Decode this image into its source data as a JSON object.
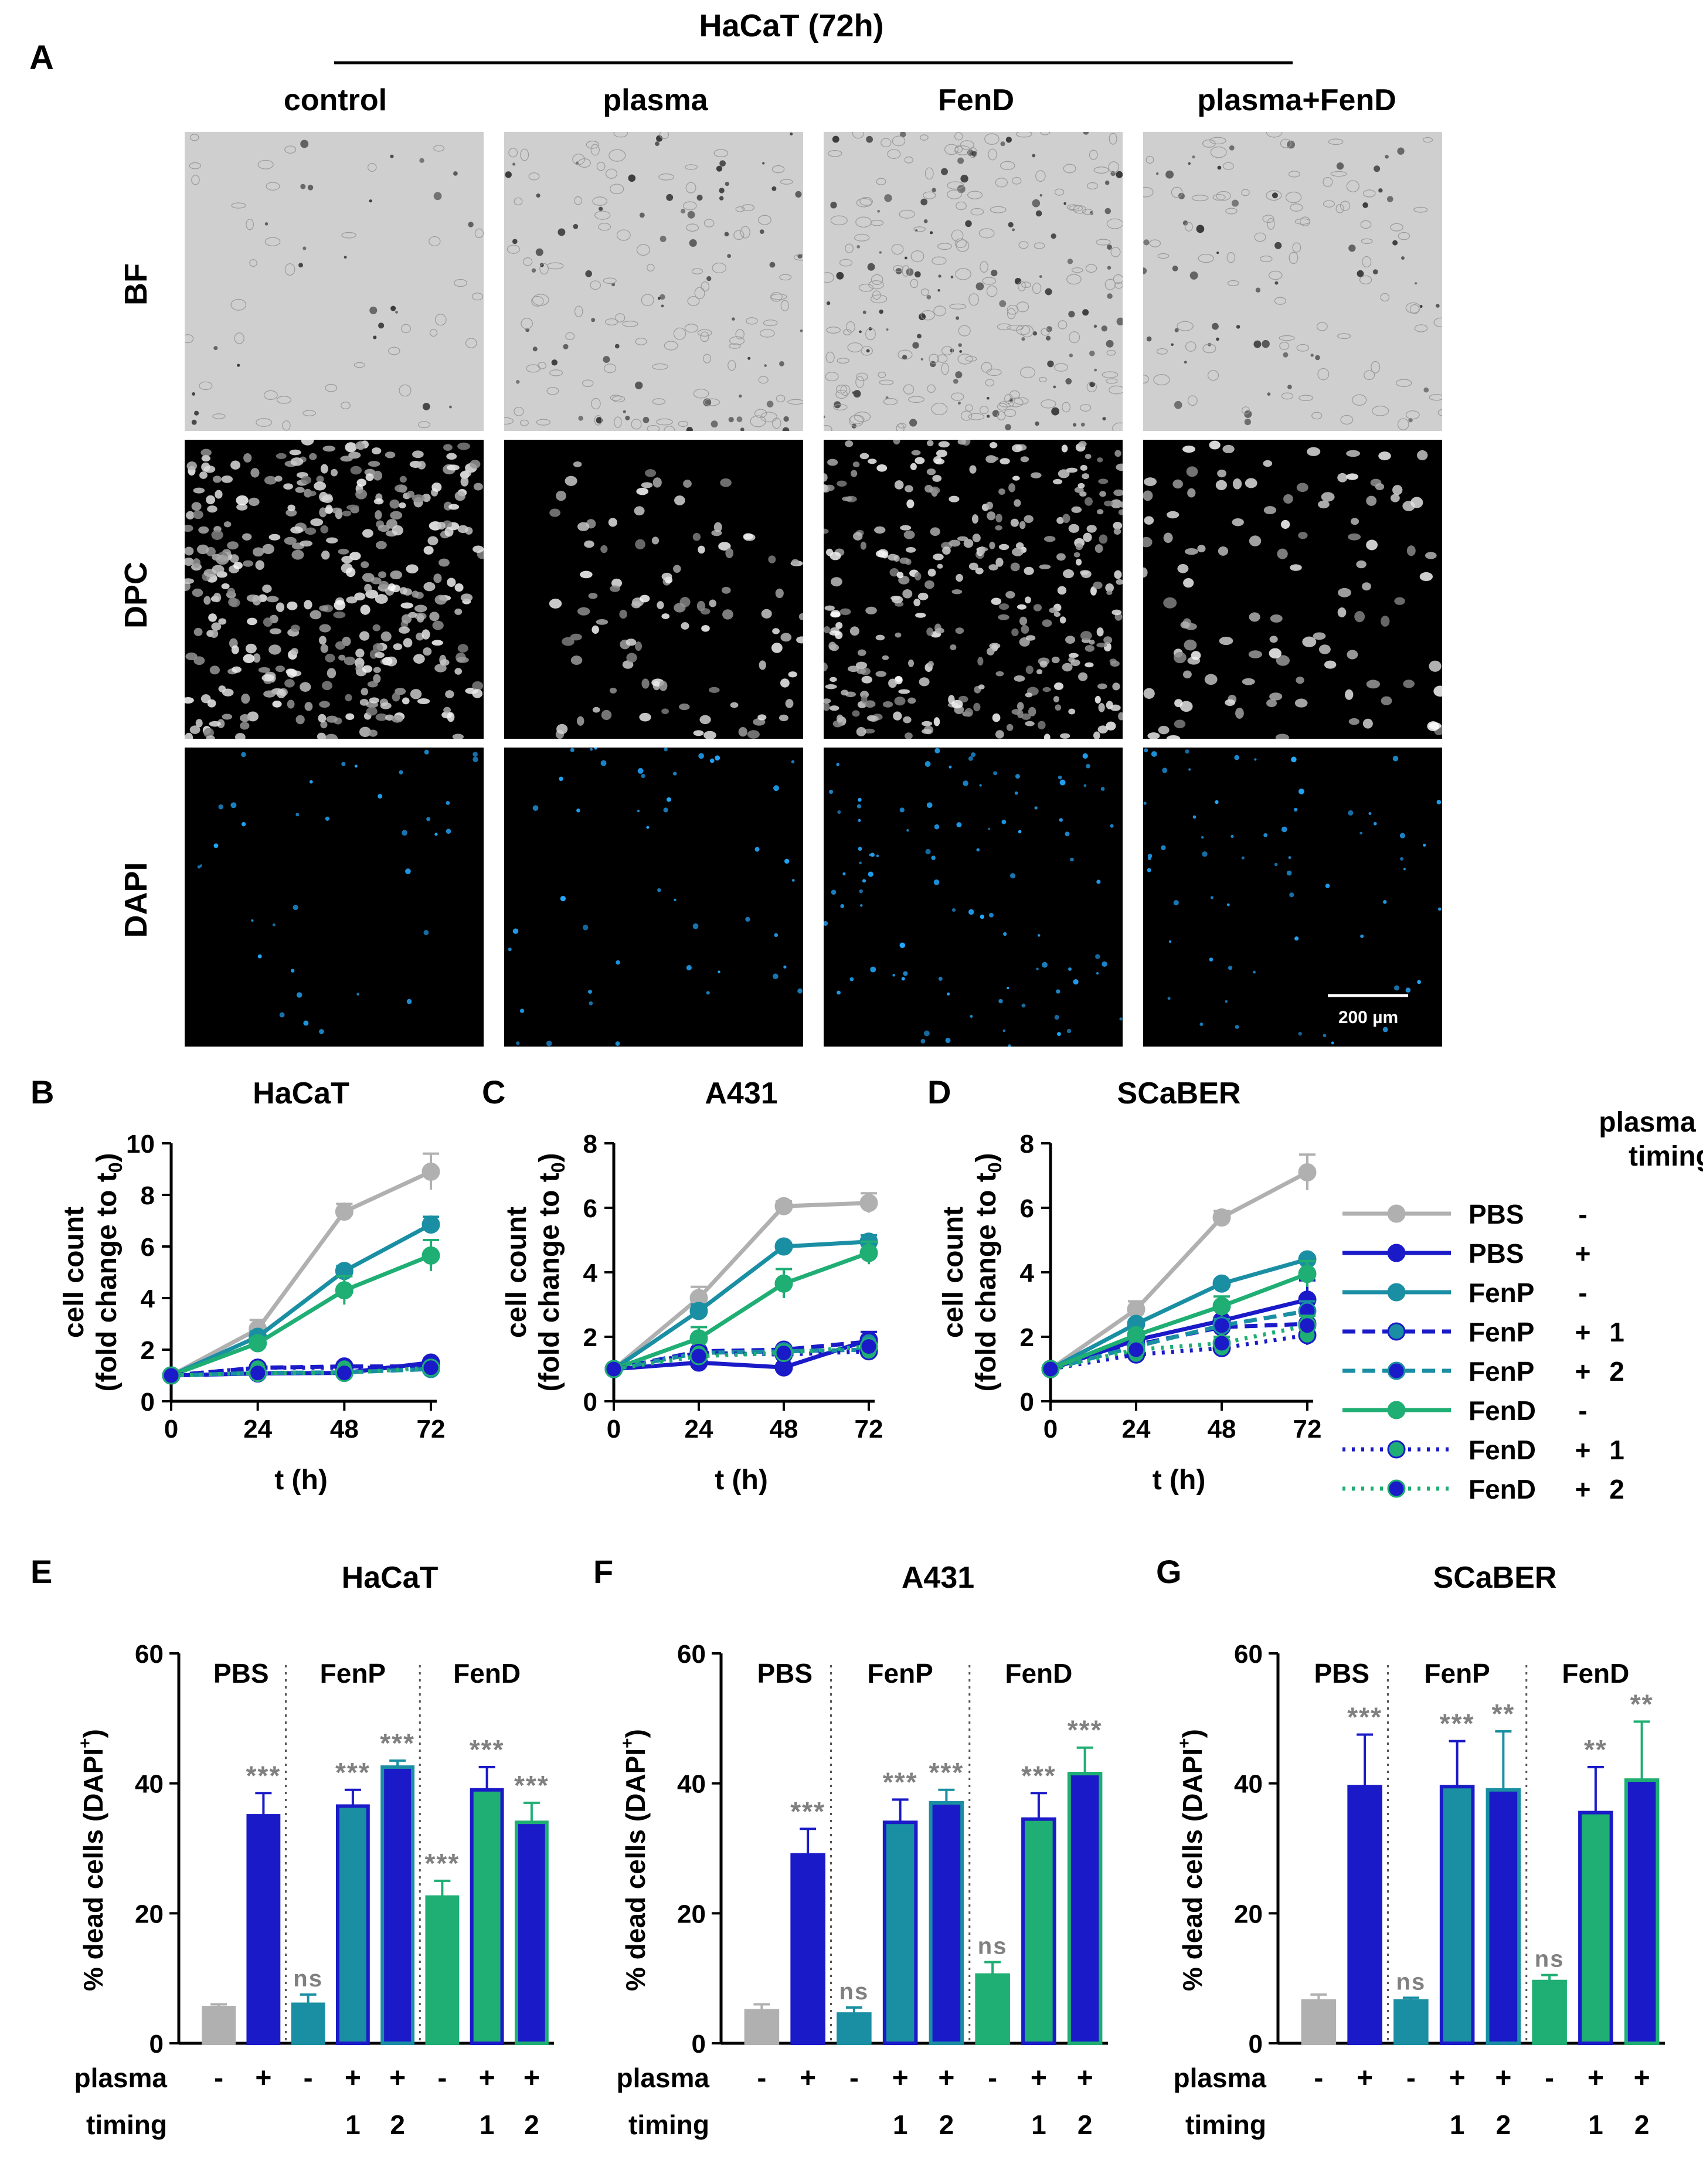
{
  "panel_a": {
    "label": "A",
    "header": "HaCaT (72h)",
    "columns": [
      "control",
      "plasma",
      "FenD",
      "plasma+FenD"
    ],
    "rows": [
      "BF",
      "DPC",
      "DAPI"
    ],
    "scale_bar": "200 µm"
  },
  "legend": {
    "header_line1": "plasma",
    "header_line2": "timing",
    "items": [
      {
        "name": "PBS",
        "plasma": "-",
        "timing": "",
        "color": "#b0b0b0",
        "dash": "solid",
        "marker_fill": "#b0b0b0"
      },
      {
        "name": "PBS",
        "plasma": "+",
        "timing": "",
        "color": "#1a1ac8",
        "dash": "solid",
        "marker_fill": "#1a1ac8"
      },
      {
        "name": "FenP",
        "plasma": "-",
        "timing": "",
        "color": "#1a8fa3",
        "dash": "solid",
        "marker_fill": "#1a8fa3"
      },
      {
        "name": "FenP",
        "plasma": "+",
        "timing": "1",
        "color": "#1a1ac8",
        "dash": "dashed",
        "marker_fill": "#1a8fa3"
      },
      {
        "name": "FenP",
        "plasma": "+",
        "timing": "2",
        "color": "#1a8fa3",
        "dash": "dashed",
        "marker_fill": "#1a1ac8"
      },
      {
        "name": "FenD",
        "plasma": "-",
        "timing": "",
        "color": "#1fae73",
        "dash": "solid",
        "marker_fill": "#1fae73"
      },
      {
        "name": "FenD",
        "plasma": "+",
        "timing": "1",
        "color": "#1a1ac8",
        "dash": "dotted",
        "marker_fill": "#1fae73"
      },
      {
        "name": "FenD",
        "plasma": "+",
        "timing": "2",
        "color": "#1fae73",
        "dash": "dotted",
        "marker_fill": "#1a1ac8"
      }
    ]
  },
  "bar_axis": {
    "groups": [
      "PBS",
      "FenP",
      "FenD"
    ],
    "row1_label": "plasma",
    "row2_label": "timing",
    "plasma_signs": [
      "-",
      "+",
      "-",
      "+",
      "+",
      "-",
      "+",
      "+"
    ],
    "timings": [
      "",
      "",
      "",
      "1",
      "2",
      "",
      "1",
      "2"
    ]
  },
  "chart_data": [
    {
      "label": "B",
      "type": "line",
      "title": "HaCaT",
      "xlabel": "t (h)",
      "ylabel_line1": "cell count",
      "ylabel_line2": "(fold change to t",
      "ylabel_sub": "0",
      "ylabel_end": ")",
      "x": [
        0,
        24,
        48,
        72
      ],
      "ylim": [
        0,
        10
      ],
      "yticks": [
        0,
        2,
        4,
        6,
        8,
        10
      ],
      "series": [
        {
          "name": "PBS -",
          "values": [
            1,
            2.8,
            7.35,
            8.9
          ],
          "err": [
            0,
            0.35,
            0.3,
            0.7
          ]
        },
        {
          "name": "PBS +",
          "values": [
            1,
            1.08,
            1.1,
            1.5
          ],
          "err": [
            0,
            0.05,
            0.05,
            0.1
          ]
        },
        {
          "name": "FenP -",
          "values": [
            1,
            2.5,
            5.05,
            6.85
          ],
          "err": [
            0,
            0.2,
            0.2,
            0.3
          ]
        },
        {
          "name": "FenP + 1",
          "values": [
            1,
            1.3,
            1.35,
            1.35
          ],
          "err": [
            0,
            0.05,
            0.05,
            0.05
          ]
        },
        {
          "name": "FenP + 2",
          "values": [
            1,
            1.1,
            1.12,
            1.25
          ],
          "err": [
            0,
            0.05,
            0.05,
            0.05
          ]
        },
        {
          "name": "FenD -",
          "values": [
            1,
            2.25,
            4.3,
            5.65
          ],
          "err": [
            0,
            0.2,
            0.55,
            0.6
          ]
        },
        {
          "name": "FenD + 1",
          "values": [
            1,
            1.3,
            1.3,
            1.3
          ],
          "err": [
            0,
            0.05,
            0.05,
            0.05
          ]
        },
        {
          "name": "FenD + 2",
          "values": [
            1,
            1.1,
            1.1,
            1.3
          ],
          "err": [
            0,
            0.05,
            0.05,
            0.05
          ]
        }
      ]
    },
    {
      "label": "C",
      "type": "line",
      "title": "A431",
      "xlabel": "t (h)",
      "ylabel_line1": "cell count",
      "ylabel_line2": "(fold change to t",
      "ylabel_sub": "0",
      "ylabel_end": ")",
      "x": [
        0,
        24,
        48,
        72
      ],
      "ylim": [
        0,
        8
      ],
      "yticks": [
        0,
        2,
        4,
        6,
        8
      ],
      "series": [
        {
          "name": "PBS -",
          "values": [
            1,
            3.2,
            6.05,
            6.15
          ],
          "err": [
            0,
            0.35,
            0.15,
            0.3
          ]
        },
        {
          "name": "PBS +",
          "values": [
            1,
            1.2,
            1.05,
            1.9
          ],
          "err": [
            0,
            0.05,
            0.05,
            0.25
          ]
        },
        {
          "name": "FenP -",
          "values": [
            1,
            2.8,
            4.8,
            4.95
          ],
          "err": [
            0,
            0.2,
            0.1,
            0.2
          ]
        },
        {
          "name": "FenP + 1",
          "values": [
            1,
            1.55,
            1.6,
            1.85
          ],
          "err": [
            0,
            0.1,
            0.05,
            0.1
          ]
        },
        {
          "name": "FenP + 2",
          "values": [
            1,
            1.5,
            1.55,
            1.6
          ],
          "err": [
            0,
            0.1,
            0.05,
            0.1
          ]
        },
        {
          "name": "FenD -",
          "values": [
            1,
            1.95,
            3.65,
            4.6
          ],
          "err": [
            0,
            0.35,
            0.45,
            0.35
          ]
        },
        {
          "name": "FenD + 1",
          "values": [
            1,
            1.5,
            1.45,
            1.55
          ],
          "err": [
            0,
            0.1,
            0.05,
            0.1
          ]
        },
        {
          "name": "FenD + 2",
          "values": [
            1,
            1.4,
            1.5,
            1.7
          ],
          "err": [
            0,
            0.1,
            0.05,
            0.1
          ]
        }
      ]
    },
    {
      "label": "D",
      "type": "line",
      "title": "SCaBER",
      "xlabel": "t (h)",
      "ylabel_line1": "cell count",
      "ylabel_line2": "(fold change to t",
      "ylabel_sub": "0",
      "ylabel_end": ")",
      "x": [
        0,
        24,
        48,
        72
      ],
      "ylim": [
        0,
        8
      ],
      "yticks": [
        0,
        2,
        4,
        6,
        8
      ],
      "series": [
        {
          "name": "PBS -",
          "values": [
            1,
            2.85,
            5.7,
            7.1
          ],
          "err": [
            0,
            0.25,
            0.2,
            0.55
          ]
        },
        {
          "name": "PBS +",
          "values": [
            1,
            1.9,
            2.5,
            3.15
          ],
          "err": [
            0,
            0.1,
            0.35,
            0.6
          ]
        },
        {
          "name": "FenP -",
          "values": [
            1,
            2.4,
            3.65,
            4.4
          ],
          "err": [
            0,
            0.1,
            0.1,
            0.1
          ]
        },
        {
          "name": "FenP + 1",
          "values": [
            1,
            1.75,
            2.3,
            2.4
          ],
          "err": [
            0,
            0.1,
            0.2,
            0.3
          ]
        },
        {
          "name": "FenP + 2",
          "values": [
            1,
            1.7,
            2.35,
            2.8
          ],
          "err": [
            0,
            0.1,
            0.2,
            0.3
          ]
        },
        {
          "name": "FenD -",
          "values": [
            1,
            2.05,
            2.95,
            3.95
          ],
          "err": [
            0,
            0.1,
            0.3,
            0.4
          ]
        },
        {
          "name": "FenD + 1",
          "values": [
            1,
            1.45,
            1.65,
            2.05
          ],
          "err": [
            0,
            0.1,
            0.2,
            0.3
          ]
        },
        {
          "name": "FenD + 2",
          "values": [
            1,
            1.6,
            1.8,
            2.35
          ],
          "err": [
            0,
            0.1,
            0.2,
            0.3
          ]
        }
      ]
    },
    {
      "label": "E",
      "type": "bar",
      "title": "HaCaT",
      "ylabel_main": "% dead cells (DAPI",
      "ylabel_sup": "+",
      "ylabel_end": ")",
      "ylim": [
        0,
        60
      ],
      "yticks": [
        0,
        20,
        40,
        60
      ],
      "values": [
        5.5,
        35,
        6,
        36.5,
        42.5,
        22.5,
        39,
        34
      ],
      "err": [
        0.5,
        3.5,
        1.5,
        2.5,
        1,
        2.5,
        3.5,
        3
      ],
      "sig": [
        "",
        "***",
        "ns",
        "***",
        "***",
        "***",
        "***",
        "***"
      ]
    },
    {
      "label": "F",
      "type": "bar",
      "title": "A431",
      "ylabel_main": "% dead cells (DAPI",
      "ylabel_sup": "+",
      "ylabel_end": ")",
      "ylim": [
        0,
        60
      ],
      "yticks": [
        0,
        20,
        40,
        60
      ],
      "values": [
        5,
        29,
        4.5,
        34,
        37,
        10.5,
        34.5,
        41.5
      ],
      "err": [
        1,
        4,
        1,
        3.5,
        2,
        2,
        4,
        4
      ],
      "sig": [
        "",
        "***",
        "ns",
        "***",
        "***",
        "ns",
        "***",
        "***"
      ]
    },
    {
      "label": "G",
      "type": "bar",
      "title": "SCaBER",
      "ylabel_main": "% dead cells (DAPI",
      "ylabel_sup": "+",
      "ylabel_end": ")",
      "ylim": [
        0,
        60
      ],
      "yticks": [
        0,
        20,
        40,
        60
      ],
      "values": [
        6.5,
        39.5,
        6.5,
        39.5,
        39,
        9.5,
        35.5,
        40.5
      ],
      "err": [
        1,
        8,
        0.5,
        7,
        9,
        1,
        7,
        9
      ],
      "sig": [
        "",
        "***",
        "ns",
        "***",
        "**",
        "ns",
        "**",
        "**"
      ]
    }
  ]
}
